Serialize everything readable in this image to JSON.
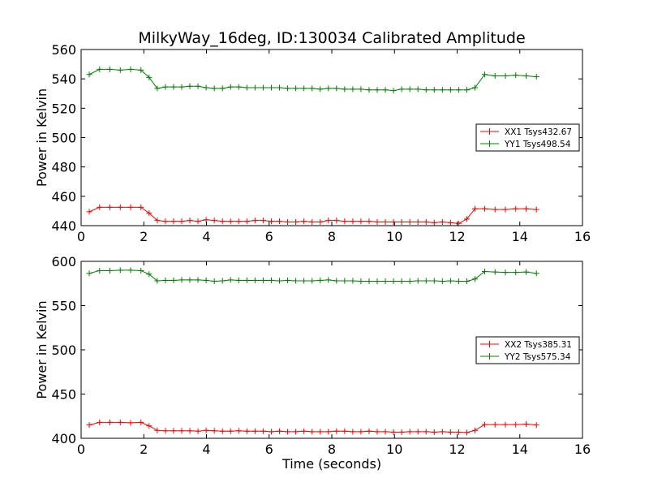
{
  "chart_data": [
    {
      "type": "line",
      "title": "MilkyWay_16deg, ID:130034 Calibrated Amplitude",
      "xlabel": "",
      "ylabel": "Power in Kelvin",
      "xlim": [
        0,
        16
      ],
      "ylim": [
        440,
        560
      ],
      "xticks": [
        0,
        2,
        4,
        6,
        8,
        10,
        12,
        14,
        16
      ],
      "yticks": [
        440,
        460,
        480,
        500,
        520,
        540,
        560
      ],
      "legend": "center-right",
      "grid": false,
      "x": [
        0.26,
        0.59,
        0.92,
        1.25,
        1.58,
        1.91,
        2.17,
        2.43,
        2.69,
        2.95,
        3.21,
        3.47,
        3.73,
        3.99,
        4.25,
        4.51,
        4.77,
        5.03,
        5.29,
        5.55,
        5.81,
        6.07,
        6.33,
        6.59,
        6.85,
        7.11,
        7.37,
        7.63,
        7.89,
        8.15,
        8.41,
        8.67,
        8.93,
        9.19,
        9.45,
        9.71,
        9.97,
        10.23,
        10.49,
        10.75,
        11.01,
        11.27,
        11.53,
        11.79,
        12.05,
        12.31,
        12.57,
        12.88,
        13.21,
        13.54,
        13.87,
        14.2,
        14.53
      ],
      "series": [
        {
          "name": "XX1 Tsys432.67",
          "color": "#ff0000",
          "values": [
            449.5,
            452.5,
            452.5,
            452.5,
            452.5,
            452.5,
            448.5,
            443.5,
            443,
            443,
            443,
            443.5,
            443,
            444,
            443.5,
            443,
            443,
            443,
            443,
            443.5,
            443.5,
            443,
            443,
            442.5,
            442.5,
            443,
            442.5,
            442.5,
            443.5,
            443.5,
            443,
            443,
            443,
            443,
            442.5,
            442.5,
            442.5,
            442.5,
            442.5,
            442.5,
            442.5,
            442,
            442.5,
            442,
            441.5,
            444.5,
            451.5,
            451.5,
            451,
            451,
            451.5,
            451.5,
            451
          ]
        },
        {
          "name": "YY1 Tsys498.54",
          "color": "#008000",
          "values": [
            543,
            546.5,
            546.5,
            546,
            546.5,
            546,
            541,
            533.5,
            534.5,
            534.5,
            534.5,
            535,
            535,
            534,
            533.5,
            533.5,
            534.5,
            534.5,
            534,
            534,
            534,
            534,
            534,
            533.5,
            533.5,
            533.5,
            533.5,
            533,
            533.5,
            533.5,
            533,
            533,
            533,
            532.5,
            532.5,
            532.5,
            532,
            533,
            533,
            533,
            532.5,
            532.5,
            532.5,
            532.5,
            532.5,
            532.5,
            534,
            543,
            542,
            542,
            542.5,
            542,
            541.5
          ]
        }
      ]
    },
    {
      "type": "line",
      "title": "",
      "xlabel": "Time (seconds)",
      "ylabel": "Power in Kelvin",
      "xlim": [
        0,
        16
      ],
      "ylim": [
        400,
        600
      ],
      "xticks": [
        0,
        2,
        4,
        6,
        8,
        10,
        12,
        14,
        16
      ],
      "yticks": [
        400,
        450,
        500,
        550,
        600
      ],
      "legend": "center-right",
      "grid": false,
      "x": [
        0.26,
        0.59,
        0.92,
        1.25,
        1.58,
        1.91,
        2.17,
        2.43,
        2.69,
        2.95,
        3.21,
        3.47,
        3.73,
        3.99,
        4.25,
        4.51,
        4.77,
        5.03,
        5.29,
        5.55,
        5.81,
        6.07,
        6.33,
        6.59,
        6.85,
        7.11,
        7.37,
        7.63,
        7.89,
        8.15,
        8.41,
        8.67,
        8.93,
        9.19,
        9.45,
        9.71,
        9.97,
        10.23,
        10.49,
        10.75,
        11.01,
        11.27,
        11.53,
        11.79,
        12.05,
        12.31,
        12.57,
        12.88,
        13.21,
        13.54,
        13.87,
        14.2,
        14.53
      ],
      "series": [
        {
          "name": "XX2 Tsys385.31",
          "color": "#ff0000",
          "values": [
            415,
            418,
            418,
            418,
            417.5,
            418,
            414,
            409,
            408.5,
            408.5,
            408.5,
            408.5,
            408,
            409,
            408.5,
            408,
            408,
            408.5,
            408,
            408,
            408,
            407.5,
            408,
            407.5,
            407.5,
            408,
            407.5,
            407.5,
            407.5,
            408,
            408,
            407.5,
            407.5,
            408,
            407.5,
            407.5,
            407,
            407,
            407.5,
            407.5,
            407.5,
            407,
            407.5,
            407,
            407,
            406.5,
            409,
            415.5,
            415.5,
            415.5,
            415.5,
            416,
            415
          ]
        },
        {
          "name": "YY2 Tsys575.34",
          "color": "#008000",
          "values": [
            586.5,
            589.5,
            589.5,
            590,
            590,
            589.5,
            585.5,
            578,
            578.5,
            578.5,
            579,
            579,
            579,
            578.5,
            577.5,
            578,
            579,
            578.5,
            578.5,
            578.5,
            578.5,
            578.5,
            578,
            578.5,
            578,
            578,
            578,
            578.5,
            579,
            578,
            578,
            578,
            577.5,
            577.5,
            577.5,
            577.5,
            577.5,
            577.5,
            577.5,
            578,
            578,
            578,
            577.5,
            578,
            577.5,
            577.5,
            580,
            588.5,
            588,
            587.5,
            587.5,
            588,
            586.5
          ]
        }
      ]
    }
  ]
}
